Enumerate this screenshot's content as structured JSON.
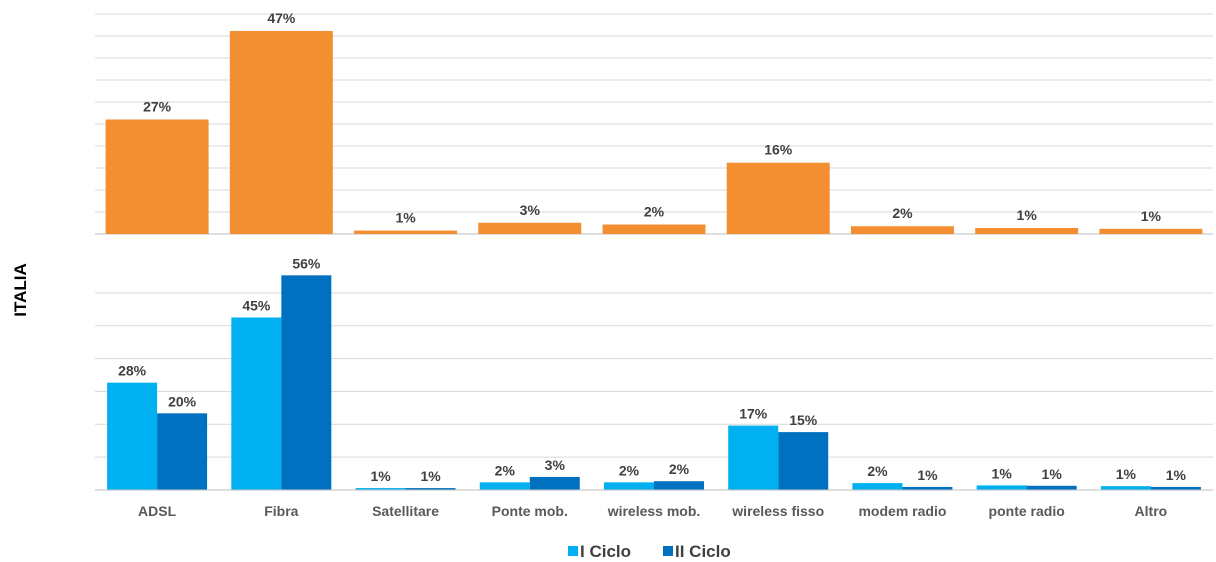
{
  "side_label": "ITALIA",
  "colors": {
    "top_bar": "#F38F31",
    "series_1": "#00B0F0",
    "series_2": "#0070C0",
    "grid": "#D9D9D9",
    "baseline": "#BFBFBF"
  },
  "chart_data": [
    {
      "type": "bar",
      "categories": [
        "ADSL",
        "Fibra",
        "Satellitare",
        "Ponte mob.",
        "wireless mob.",
        "wireless fisso",
        "modem radio",
        "ponte radio",
        "Altro"
      ],
      "values": [
        27,
        47,
        1,
        3,
        2,
        16,
        2,
        1,
        1
      ],
      "value_labels": [
        "27%",
        "47%",
        "1%",
        "3%",
        "2%",
        "16%",
        "2%",
        "1%",
        "1%"
      ],
      "bar_heights": [
        26.5,
        47,
        0.8,
        2.6,
        2.2,
        16.5,
        1.8,
        1.4,
        1.2
      ],
      "ylim": [
        0,
        50
      ],
      "grid": true,
      "legend": false
    },
    {
      "type": "bar",
      "categories": [
        "ADSL",
        "Fibra",
        "Satellitare",
        "Ponte mob.",
        "wireless mob.",
        "wireless fisso",
        "modem radio",
        "ponte radio",
        "Altro"
      ],
      "series": [
        {
          "name": "I Ciclo",
          "values": [
            28,
            45,
            1,
            2,
            2,
            17,
            2,
            1,
            1
          ],
          "value_labels": [
            "28%",
            "45%",
            "1%",
            "2%",
            "2%",
            "17%",
            "2%",
            "1%",
            "1%"
          ],
          "bar_heights": [
            28,
            45,
            0.5,
            2,
            2,
            16.8,
            1.8,
            1.2,
            1
          ]
        },
        {
          "name": "II Ciclo",
          "values": [
            20,
            56,
            1,
            3,
            2,
            15,
            1,
            1,
            1
          ],
          "value_labels": [
            "20%",
            "56%",
            "1%",
            "3%",
            "2%",
            "15%",
            "1%",
            "1%",
            "1%"
          ],
          "bar_heights": [
            20,
            56,
            0.5,
            3.4,
            2.3,
            15.1,
            0.8,
            1.1,
            0.8
          ]
        }
      ],
      "ylim": [
        0,
        60
      ],
      "grid": true,
      "legend": "bottom-center"
    }
  ]
}
